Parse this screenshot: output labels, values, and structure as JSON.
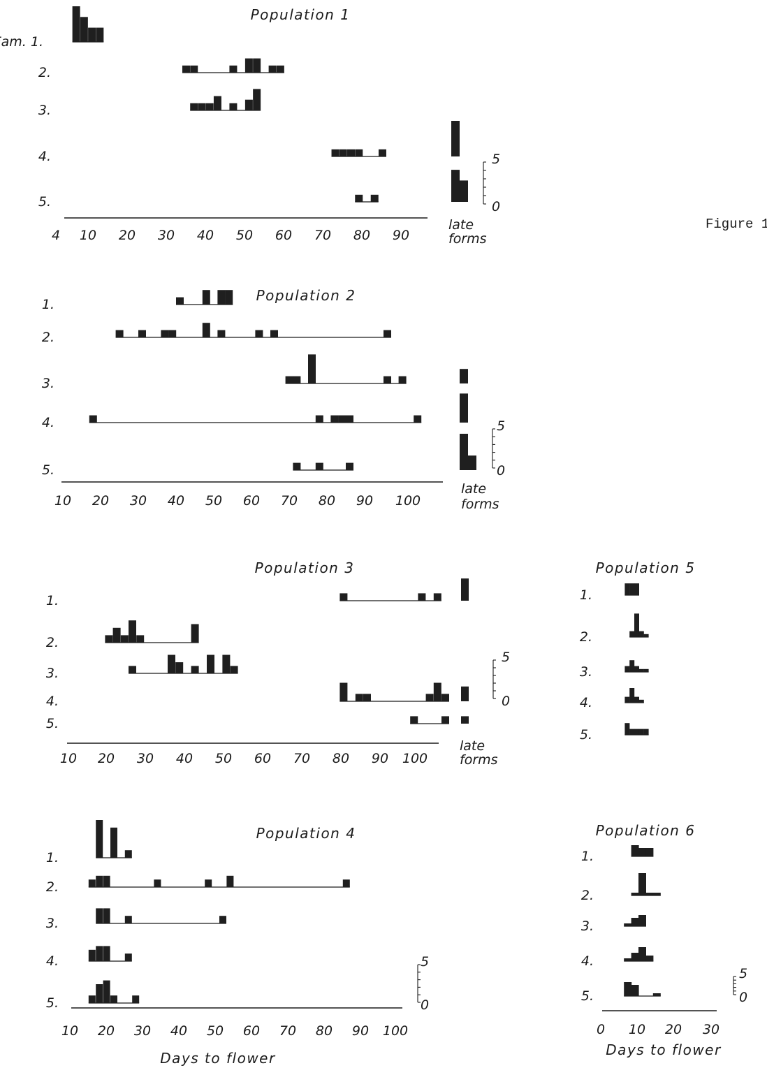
{
  "figure_label": "Figure 1",
  "chart_data": [
    {
      "type": "bar",
      "title": "Population 1",
      "xlabel": "",
      "x_ticks": [
        "4",
        "10",
        "20",
        "30",
        "40",
        "50",
        "60",
        "70",
        "80",
        "90"
      ],
      "xlim": [
        4,
        100
      ],
      "late_label": [
        "late",
        "forms"
      ],
      "scale_labels": [
        "5",
        "0"
      ],
      "families": [
        {
          "label": "Fam. 1.",
          "bars": [
            [
              5,
              10
            ],
            [
              7,
              7
            ],
            [
              9,
              4
            ],
            [
              11,
              4
            ]
          ],
          "late": null
        },
        {
          "label": "2.",
          "bars": [
            [
              33,
              2
            ],
            [
              35,
              2
            ],
            [
              45,
              2
            ],
            [
              49,
              4
            ],
            [
              51,
              4
            ],
            [
              55,
              2
            ],
            [
              57,
              2
            ]
          ],
          "late": null
        },
        {
          "label": "3.",
          "bars": [
            [
              35,
              2
            ],
            [
              37,
              2
            ],
            [
              39,
              2
            ],
            [
              41,
              4
            ],
            [
              45,
              2
            ],
            [
              49,
              3
            ],
            [
              51,
              6
            ]
          ],
          "late": null
        },
        {
          "label": "4.",
          "bars": [
            [
              71,
              2
            ],
            [
              73,
              2
            ],
            [
              75,
              2
            ],
            [
              77,
              2
            ],
            [
              83,
              2
            ]
          ],
          "late": 10
        },
        {
          "label": "5.",
          "bars": [
            [
              77,
              2
            ],
            [
              81,
              2
            ]
          ],
          "late": [
            9,
            6
          ]
        }
      ]
    },
    {
      "type": "bar",
      "title": "Population 2",
      "xlabel": "",
      "x_ticks": [
        "10",
        "20",
        "30",
        "40",
        "50",
        "60",
        "70",
        "80",
        "90",
        "100"
      ],
      "xlim": [
        10,
        106
      ],
      "late_label": [
        "late",
        "forms"
      ],
      "scale_labels": [
        "5",
        "0"
      ],
      "families": [
        {
          "label": "1.",
          "bars": [
            [
              40,
              2
            ],
            [
              47,
              4
            ],
            [
              51,
              4
            ],
            [
              53,
              4
            ]
          ],
          "late": null
        },
        {
          "label": "2.",
          "bars": [
            [
              24,
              2
            ],
            [
              30,
              2
            ],
            [
              36,
              2
            ],
            [
              38,
              2
            ],
            [
              47,
              4
            ],
            [
              51,
              2
            ],
            [
              61,
              2
            ],
            [
              65,
              2
            ],
            [
              95,
              2
            ]
          ],
          "late": null
        },
        {
          "label": "3.",
          "bars": [
            [
              69,
              2
            ],
            [
              71,
              2
            ],
            [
              75,
              8
            ],
            [
              95,
              2
            ],
            [
              99,
              2
            ]
          ],
          "late": 4
        },
        {
          "label": "4.",
          "bars": [
            [
              17,
              2
            ],
            [
              77,
              2
            ],
            [
              81,
              2
            ],
            [
              83,
              2
            ],
            [
              85,
              2
            ],
            [
              103,
              2
            ]
          ],
          "late": 8
        },
        {
          "label": "5.",
          "bars": [
            [
              71,
              2
            ],
            [
              77,
              2
            ],
            [
              85,
              2
            ]
          ],
          "late": [
            10,
            4
          ]
        }
      ]
    },
    {
      "type": "bar",
      "title": "Population 3",
      "xlabel": "",
      "x_ticks": [
        "10",
        "20",
        "30",
        "40",
        "50",
        "60",
        "70",
        "80",
        "90",
        "100"
      ],
      "xlim": [
        10,
        106
      ],
      "late_label": [
        "late",
        "forms"
      ],
      "scale_labels": [
        "5",
        "0"
      ],
      "families": [
        {
          "label": "1.",
          "bars": [
            [
              79,
              2
            ],
            [
              99,
              2
            ],
            [
              103,
              2
            ]
          ],
          "late": 6
        },
        {
          "label": "2.",
          "bars": [
            [
              19,
              2
            ],
            [
              21,
              4
            ],
            [
              23,
              2
            ],
            [
              25,
              6
            ],
            [
              27,
              2
            ],
            [
              41,
              5
            ]
          ],
          "late": null
        },
        {
          "label": "3.",
          "bars": [
            [
              25,
              2
            ],
            [
              35,
              5
            ],
            [
              37,
              3
            ],
            [
              41,
              2
            ],
            [
              45,
              5
            ],
            [
              49,
              5
            ],
            [
              51,
              2
            ]
          ],
          "late": null
        },
        {
          "label": "4.",
          "bars": [
            [
              79,
              5
            ],
            [
              83,
              2
            ],
            [
              85,
              2
            ],
            [
              101,
              2
            ],
            [
              103,
              5
            ],
            [
              105,
              2
            ]
          ],
          "late": 4
        },
        {
          "label": "5.",
          "bars": [
            [
              97,
              2
            ],
            [
              105,
              2
            ]
          ],
          "late": 2
        }
      ]
    },
    {
      "type": "bar",
      "title": "Population 4",
      "xlabel": "Days to flower",
      "x_ticks": [
        "10",
        "20",
        "30",
        "40",
        "50",
        "60",
        "70",
        "80",
        "90",
        "100"
      ],
      "xlim": [
        10,
        104
      ],
      "late_label": null,
      "scale_labels": [
        "5",
        "0"
      ],
      "families": [
        {
          "label": "1.",
          "bars": [
            [
              16,
              10
            ],
            [
              20,
              8
            ],
            [
              24,
              2
            ]
          ],
          "late": null
        },
        {
          "label": "2.",
          "bars": [
            [
              14,
              2
            ],
            [
              16,
              3
            ],
            [
              18,
              3
            ],
            [
              32,
              2
            ],
            [
              46,
              2
            ],
            [
              52,
              3
            ],
            [
              84,
              2
            ]
          ],
          "late": null
        },
        {
          "label": "3.",
          "bars": [
            [
              16,
              4
            ],
            [
              18,
              4
            ],
            [
              24,
              2
            ],
            [
              50,
              2
            ]
          ],
          "late": null
        },
        {
          "label": "4.",
          "bars": [
            [
              14,
              3
            ],
            [
              16,
              4
            ],
            [
              18,
              4
            ],
            [
              24,
              2
            ]
          ],
          "late": null
        },
        {
          "label": "5.",
          "bars": [
            [
              14,
              2
            ],
            [
              16,
              5
            ],
            [
              18,
              6
            ],
            [
              20,
              2
            ],
            [
              26,
              2
            ]
          ],
          "late": null
        }
      ]
    },
    {
      "type": "bar",
      "title": "Population 5",
      "xlabel": "",
      "x_ticks": [],
      "xlim": [
        0,
        30
      ],
      "late_label": null,
      "scale_labels": [],
      "families": [
        {
          "label": "1.",
          "bars": [
            [
              6,
              4
            ],
            [
              8,
              4
            ],
            [
              10,
              4
            ]
          ],
          "late": null
        },
        {
          "label": "2.",
          "bars": [
            [
              8,
              2
            ],
            [
              10,
              8
            ],
            [
              12,
              2
            ],
            [
              14,
              1
            ]
          ],
          "late": null
        },
        {
          "label": "3.",
          "bars": [
            [
              6,
              2
            ],
            [
              8,
              4
            ],
            [
              10,
              2
            ],
            [
              12,
              1
            ],
            [
              14,
              1
            ]
          ],
          "late": null
        },
        {
          "label": "4.",
          "bars": [
            [
              6,
              2
            ],
            [
              8,
              5
            ],
            [
              10,
              2
            ],
            [
              12,
              1
            ]
          ],
          "late": null
        },
        {
          "label": "5.",
          "bars": [
            [
              6,
              4
            ],
            [
              8,
              2
            ],
            [
              10,
              2
            ],
            [
              12,
              2
            ],
            [
              14,
              2
            ]
          ],
          "late": null
        }
      ]
    },
    {
      "type": "bar",
      "title": "Population 6",
      "xlabel": "Days to flower",
      "x_ticks": [
        "0",
        "10",
        "20",
        "30"
      ],
      "xlim": [
        0,
        30
      ],
      "late_label": null,
      "scale_labels": [
        "5",
        "0"
      ],
      "families": [
        {
          "label": "1.",
          "bars": [
            [
              8,
              4
            ],
            [
              10,
              3
            ],
            [
              12,
              3
            ]
          ],
          "late": null
        },
        {
          "label": "2.",
          "bars": [
            [
              8,
              1
            ],
            [
              10,
              8
            ],
            [
              12,
              1
            ],
            [
              14,
              1
            ]
          ],
          "late": null
        },
        {
          "label": "3.",
          "bars": [
            [
              6,
              1
            ],
            [
              8,
              3
            ],
            [
              10,
              4
            ]
          ],
          "late": null
        },
        {
          "label": "4.",
          "bars": [
            [
              6,
              1
            ],
            [
              8,
              3
            ],
            [
              10,
              5
            ],
            [
              12,
              2
            ]
          ],
          "late": null
        },
        {
          "label": "5.",
          "bars": [
            [
              6,
              5
            ],
            [
              8,
              4
            ],
            [
              14,
              1
            ]
          ],
          "late": null
        }
      ]
    }
  ]
}
